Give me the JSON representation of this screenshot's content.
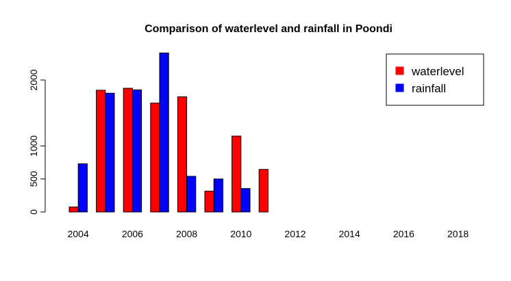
{
  "chart_data": {
    "type": "bar",
    "title": "Comparison of waterlevel and rainfall in Poondi",
    "xlabel": "",
    "ylabel": "",
    "categories": [
      "2004",
      "2005",
      "2006",
      "2007",
      "2008",
      "2009",
      "2010",
      "2011",
      "2012",
      "2013",
      "2014",
      "2015",
      "2016",
      "2017",
      "2018"
    ],
    "x_tick_labels": [
      "2004",
      "2006",
      "2008",
      "2010",
      "2012",
      "2014",
      "2016",
      "2018"
    ],
    "y_ticks": [
      0,
      500,
      1000,
      2000
    ],
    "y_tick_labels": [
      "0",
      "500",
      "1000",
      "2000"
    ],
    "ylim": [
      0,
      2450
    ],
    "grid": false,
    "legend_position": "top-right",
    "series": [
      {
        "name": "waterlevel",
        "color": "#ff0000",
        "values": [
          75,
          1845,
          1875,
          1650,
          1745,
          315,
          1150,
          645,
          0,
          0,
          0,
          0,
          0,
          0,
          0
        ]
      },
      {
        "name": "rainfall",
        "color": "#0000ff",
        "values": [
          730,
          1800,
          1850,
          2410,
          540,
          500,
          355,
          0,
          0,
          0,
          0,
          0,
          0,
          0,
          0
        ]
      }
    ]
  }
}
